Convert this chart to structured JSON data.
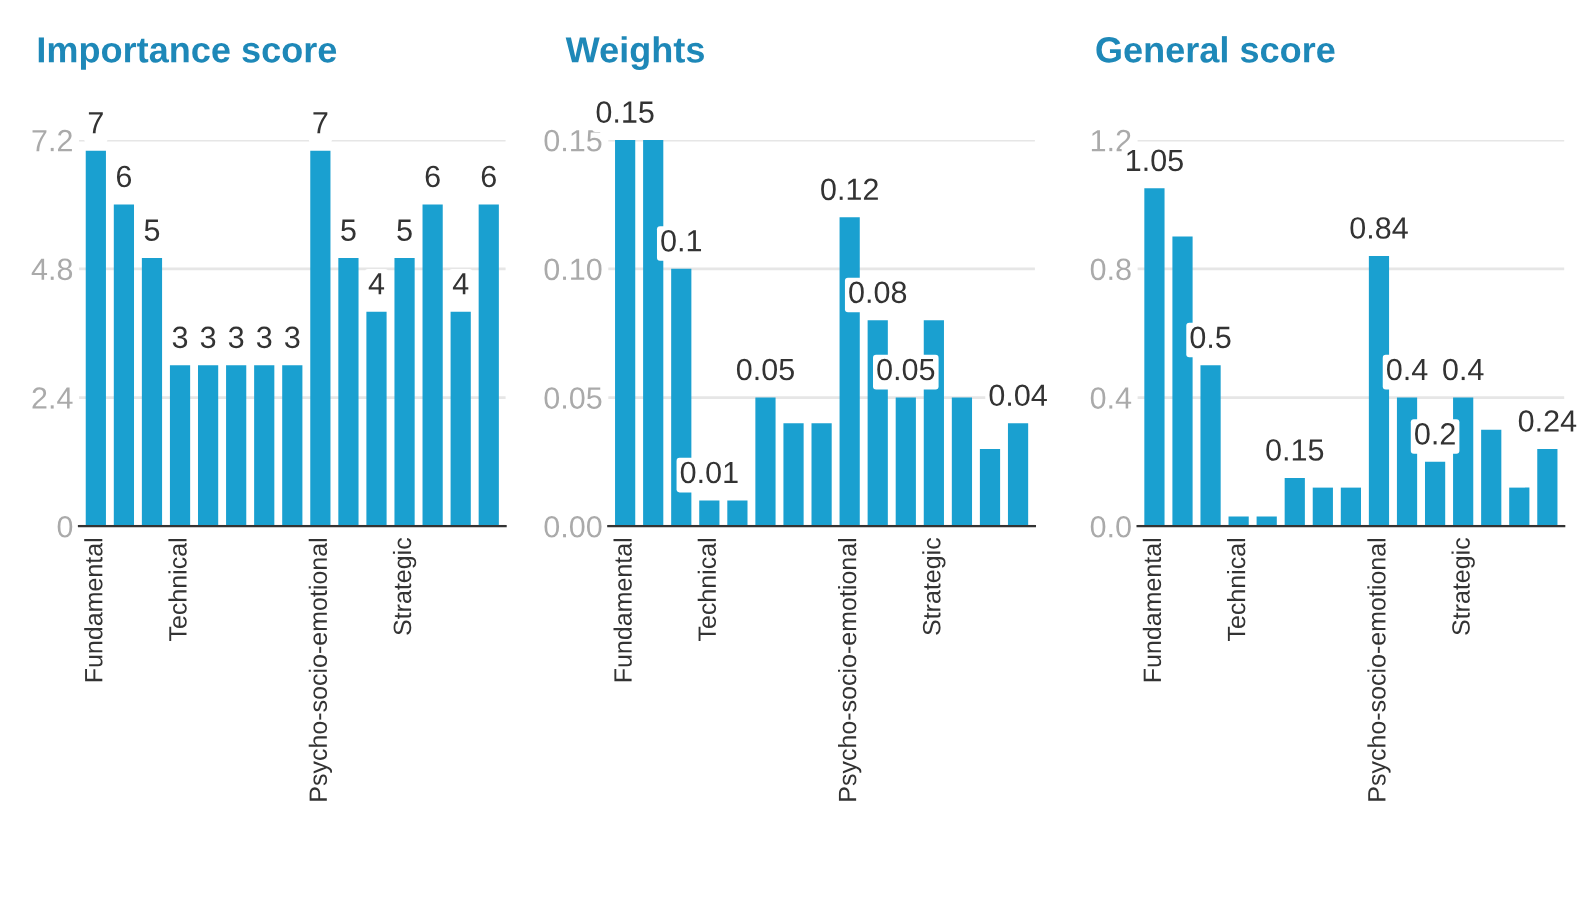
{
  "chart_data": [
    {
      "type": "bar",
      "title": "Importance score",
      "categories": [
        "Fundamental",
        null,
        null,
        "Technical",
        null,
        null,
        null,
        null,
        "Psycho-socio-emotional",
        null,
        null,
        "Strategic",
        null,
        null,
        null
      ],
      "values": [
        7,
        6,
        5,
        3,
        3,
        3,
        3,
        3,
        7,
        5,
        4,
        5,
        6,
        4,
        6
      ],
      "color": "#1aa0d0",
      "ylim": [
        0,
        7.2
      ],
      "yticks": [
        0,
        2.4,
        4.8,
        7.2
      ],
      "grid": "y",
      "data_labels": true
    },
    {
      "type": "bar",
      "title": "Weights",
      "categories": [
        "Fundamental",
        null,
        null,
        "Technical",
        null,
        null,
        null,
        null,
        "Psycho-socio-emotional",
        null,
        null,
        "Strategic",
        null,
        null,
        null
      ],
      "values": [
        0.15,
        0.15,
        0.1,
        0.01,
        0.01,
        0.05,
        0.04,
        0.04,
        0.12,
        0.08,
        0.05,
        0.08,
        0.05,
        0.03,
        0.04
      ],
      "value_labels": [
        "0.15",
        null,
        "0.1",
        "0.01",
        null,
        "0.05",
        null,
        null,
        "0.12",
        "0.08",
        "0.05",
        null,
        null,
        null,
        "0.04"
      ],
      "color": "#1aa0d0",
      "ylim": [
        0,
        0.15
      ],
      "yticks": [
        {
          "value": 0,
          "label": "0.00"
        },
        {
          "value": 0.05,
          "label": "0.05"
        },
        {
          "value": 0.1,
          "label": "0.10"
        },
        {
          "value": 0.15,
          "label": "0.15"
        }
      ],
      "grid": "y"
    },
    {
      "type": "bar",
      "title": "General score",
      "categories": [
        "Fundamental",
        null,
        null,
        "Technical",
        null,
        null,
        null,
        null,
        "Psycho-socio-emotional",
        null,
        null,
        "Strategic",
        null,
        null,
        null
      ],
      "values": [
        1.05,
        0.9,
        0.5,
        0.03,
        0.03,
        0.15,
        0.12,
        0.12,
        0.84,
        0.4,
        0.2,
        0.4,
        0.3,
        0.12,
        0.24
      ],
      "value_labels": [
        "1.05",
        null,
        "0.5",
        null,
        null,
        "0.15",
        null,
        null,
        "0.84",
        "0.4",
        "0.2",
        "0.4",
        null,
        null,
        "0.24"
      ],
      "color": "#1aa0d0",
      "ylim": [
        0,
        1.2
      ],
      "yticks": [
        {
          "value": 0,
          "label": "0.0"
        },
        0.4,
        0.8,
        1.2
      ],
      "grid": "y"
    }
  ]
}
